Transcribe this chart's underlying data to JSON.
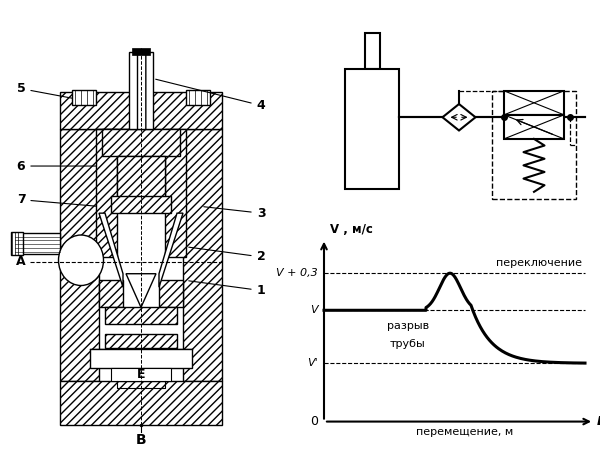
{
  "labels": {
    "V_axis": "V , м/с",
    "x_axis": "перемещение, м",
    "L_label": "L",
    "O_label": "0",
    "V_plus": "V + 0,3",
    "V_label": "V",
    "Vprime_label": "V'",
    "switch_label": "переключение",
    "break_label1": "разрыв",
    "break_label2": "трубы"
  },
  "letters": {
    "A": "A",
    "E": "E",
    "B": "B"
  },
  "numbers": [
    "1",
    "2",
    "3",
    "4",
    "5",
    "6",
    "7"
  ],
  "curve_color": "#000000",
  "line_color": "#000000"
}
